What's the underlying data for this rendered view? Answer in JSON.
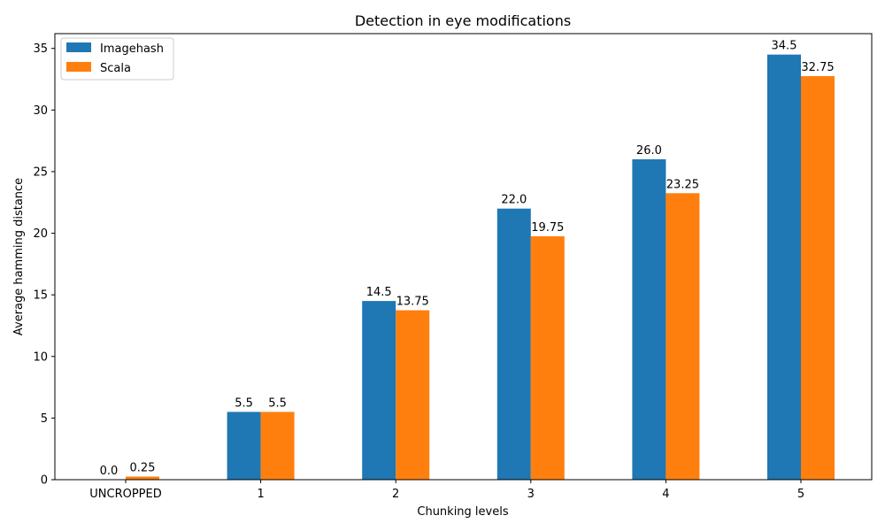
{
  "chart_data": {
    "type": "bar",
    "title": "Detection in eye modifications",
    "xlabel": "Chunking levels",
    "ylabel": "Average hamming distance",
    "categories": [
      "UNCROPPED",
      "1",
      "2",
      "3",
      "4",
      "5"
    ],
    "series": [
      {
        "name": "Imagehash",
        "values": [
          0.0,
          5.5,
          14.5,
          22.0,
          26.0,
          34.5
        ],
        "labels": [
          "0.0",
          "5.5",
          "14.5",
          "22.0",
          "26.0",
          "34.5"
        ],
        "color": "#1f77b4"
      },
      {
        "name": "Scala",
        "values": [
          0.25,
          5.5,
          13.75,
          19.75,
          23.25,
          32.75
        ],
        "labels": [
          "0.25",
          "5.5",
          "13.75",
          "19.75",
          "23.25",
          "32.75"
        ],
        "color": "#ff7f0e"
      }
    ],
    "ylim": [
      0,
      36.2
    ],
    "yticks": [
      0,
      5,
      10,
      15,
      20,
      25,
      30,
      35
    ],
    "grid": false,
    "legend_position": "top-left"
  }
}
